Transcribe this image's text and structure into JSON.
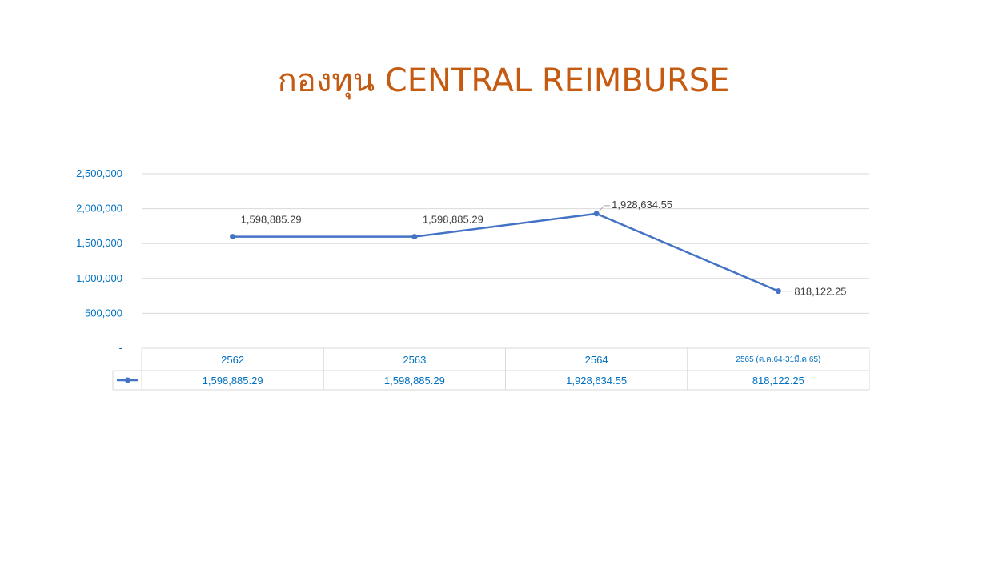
{
  "slide": {
    "title": "กองทุน CENTRAL REIMBURSE"
  },
  "colors": {
    "title": "#C55A11",
    "series": "#4472C4",
    "axis_text": "#0070C0",
    "grid": "#D9D9D9",
    "label_text": "#404040"
  },
  "chart_data": {
    "type": "line",
    "title": "",
    "xlabel": "",
    "ylabel": "",
    "categories": [
      "2562",
      "2563",
      "2564",
      "2565 (ต.ค.64-31มี.ค.65)"
    ],
    "series": [
      {
        "name": "",
        "values": [
          1598885.29,
          1598885.29,
          1928634.55,
          818122.25
        ]
      }
    ],
    "data_labels": [
      "1,598,885.29",
      "1,598,885.29",
      "1,928,634.55",
      "818,122.25"
    ],
    "ylim": [
      0,
      2500000
    ],
    "yticks": [
      0,
      500000,
      1000000,
      1500000,
      2000000,
      2500000
    ],
    "ytick_labels": [
      "-",
      "500,000",
      "1,000,000",
      "1,500,000",
      "2,000,000",
      "2,500,000"
    ],
    "grid": true,
    "legend": "none",
    "data_table": {
      "shown": true,
      "values": [
        "1,598,885.29",
        "1,598,885.29",
        "1,928,634.55",
        "818,122.25"
      ]
    }
  }
}
